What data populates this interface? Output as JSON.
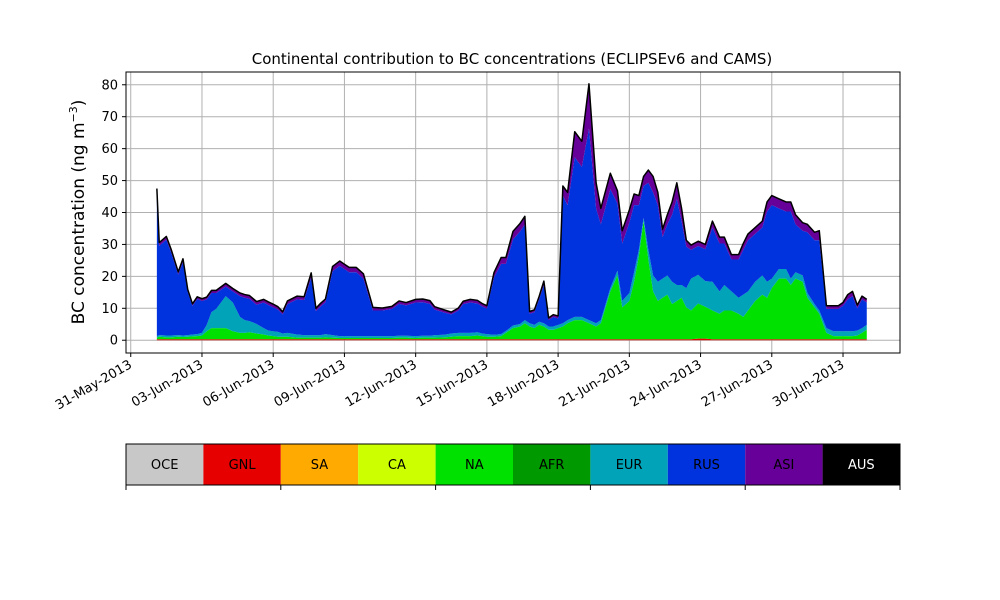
{
  "chart_data": {
    "type": "area",
    "title": "Continental contribution to BC concentrations (ECLIPSEv6 and CAMS)",
    "ylabel": "BC concentration (ng m⁻³)",
    "ylabel_main": "BC concentration (ng m",
    "ylabel_exp": "−3",
    "ylabel_close": ")",
    "xlabel": "",
    "ylim": [
      -4,
      84
    ],
    "xlim": [
      -0.2,
      32.4
    ],
    "yticks": [
      0,
      10,
      20,
      30,
      40,
      50,
      60,
      70,
      80
    ],
    "ytick_labels": [
      "0",
      "10",
      "20",
      "30",
      "40",
      "50",
      "60",
      "70",
      "80"
    ],
    "xticks": [
      0,
      3,
      6,
      9,
      12,
      15,
      18,
      21,
      24,
      27,
      30
    ],
    "xtick_labels": [
      "31-May-2013",
      "03-Jun-2013",
      "06-Jun-2013",
      "09-Jun-2013",
      "12-Jun-2013",
      "15-Jun-2013",
      "18-Jun-2013",
      "21-Jun-2013",
      "24-Jun-2013",
      "27-Jun-2013",
      "30-Jun-2013"
    ],
    "x_units": "days since 31-May-2013",
    "grid": true,
    "stack_order_bottom_to_top": [
      "GNL",
      "NA",
      "EUR",
      "RUS",
      "ASI"
    ],
    "x": [
      1.1,
      1.2,
      1.5,
      1.7,
      2.0,
      2.2,
      2.4,
      2.6,
      2.8,
      3.0,
      3.2,
      3.4,
      3.6,
      4.0,
      4.3,
      4.6,
      4.8,
      5.0,
      5.3,
      5.6,
      5.8,
      6.0,
      6.2,
      6.4,
      6.6,
      7.0,
      7.3,
      7.6,
      7.8,
      8.0,
      8.2,
      8.5,
      8.8,
      9.0,
      9.2,
      9.5,
      9.8,
      10.2,
      10.6,
      11.0,
      11.3,
      11.6,
      12.0,
      12.3,
      12.6,
      12.8,
      13.2,
      13.5,
      13.8,
      14.0,
      14.3,
      14.6,
      14.8,
      15.0,
      15.3,
      15.6,
      15.8,
      16.1,
      16.4,
      16.6,
      16.8,
      17.0,
      17.2,
      17.4,
      17.6,
      17.8,
      18.0,
      18.2,
      18.4,
      18.7,
      19.0,
      19.3,
      19.6,
      19.8,
      20.2,
      20.5,
      20.7,
      21.0,
      21.2,
      21.4,
      21.6,
      21.8,
      22.0,
      22.2,
      22.4,
      22.6,
      22.8,
      23.0,
      23.2,
      23.4,
      23.6,
      23.9,
      24.2,
      24.5,
      24.8,
      25.0,
      25.3,
      25.6,
      25.8,
      26.0,
      26.3,
      26.6,
      26.8,
      27.0,
      27.3,
      27.6,
      27.8,
      28.0,
      28.3,
      28.5,
      28.8,
      29.0,
      29.3,
      29.6,
      29.8,
      30.0,
      30.2,
      30.4,
      30.6,
      30.8,
      31.0
    ],
    "series": [
      {
        "name": "GNL",
        "values": [
          0.3,
          0.3,
          0.3,
          0.3,
          0.3,
          0.3,
          0.3,
          0.3,
          0.3,
          0.3,
          0.3,
          0.3,
          0.3,
          0.3,
          0.3,
          0.3,
          0.3,
          0.3,
          0.3,
          0.3,
          0.3,
          0.3,
          0.3,
          0.3,
          0.3,
          0.3,
          0.3,
          0.3,
          0.3,
          0.3,
          0.3,
          0.3,
          0.3,
          0.3,
          0.3,
          0.3,
          0.3,
          0.3,
          0.3,
          0.3,
          0.3,
          0.3,
          0.3,
          0.3,
          0.3,
          0.3,
          0.3,
          0.3,
          0.3,
          0.3,
          0.3,
          0.3,
          0.3,
          0.3,
          0.3,
          0.3,
          0.3,
          0.3,
          0.3,
          0.3,
          0.3,
          0.3,
          0.3,
          0.3,
          0.3,
          0.3,
          0.3,
          0.3,
          0.3,
          0.3,
          0.3,
          0.3,
          0.3,
          0.3,
          0.3,
          0.3,
          0.3,
          0.3,
          0.3,
          0.3,
          0.3,
          0.3,
          0.3,
          0.3,
          0.3,
          0.3,
          0.3,
          0.3,
          0.3,
          0.3,
          0.3,
          0.5,
          0.5,
          0.3,
          0.3,
          0.3,
          0.3,
          0.3,
          0.3,
          0.3,
          0.3,
          0.3,
          0.3,
          0.3,
          0.3,
          0.3,
          0.3,
          0.3,
          0.3,
          0.3,
          0.3,
          0.3,
          0.3,
          0.3,
          0.3,
          0.3,
          0.3,
          0.3,
          0.3,
          0.3,
          0.3
        ]
      },
      {
        "name": "NA",
        "values": [
          0.5,
          0.8,
          0.6,
          0.6,
          0.8,
          0.7,
          0.8,
          0.9,
          1.0,
          1.2,
          2.5,
          3.5,
          3.5,
          3.5,
          2.5,
          2.0,
          2.0,
          2.2,
          1.8,
          1.5,
          1.2,
          1.0,
          0.8,
          0.8,
          0.8,
          0.5,
          0.5,
          0.5,
          0.5,
          0.5,
          0.6,
          0.5,
          0.4,
          0.4,
          0.4,
          0.4,
          0.4,
          0.4,
          0.4,
          0.4,
          0.5,
          0.5,
          0.4,
          0.5,
          0.5,
          0.5,
          0.6,
          0.8,
          1.0,
          1.0,
          1.0,
          1.2,
          1.0,
          0.8,
          0.8,
          1.0,
          2.0,
          3.5,
          4.0,
          5.0,
          4.0,
          3.5,
          4.5,
          4.0,
          3.0,
          3.0,
          3.5,
          4.0,
          5.0,
          6.0,
          6.0,
          5.0,
          4.0,
          5.0,
          15.0,
          20.0,
          10.0,
          12.0,
          18.0,
          26.0,
          37.0,
          25.0,
          15.0,
          12.0,
          13.0,
          14.0,
          11.0,
          12.0,
          13.0,
          10.0,
          9.0,
          11.0,
          10.0,
          9.0,
          8.0,
          9.0,
          9.0,
          8.0,
          7.0,
          9.0,
          12.0,
          14.0,
          13.0,
          16.0,
          19.0,
          19.0,
          17.0,
          19.0,
          18.0,
          13.0,
          10.0,
          8.0,
          2.0,
          1.0,
          1.0,
          1.0,
          1.0,
          1.0,
          1.2,
          2.0,
          3.0
        ]
      },
      {
        "name": "EUR",
        "values": [
          0.5,
          0.5,
          0.6,
          0.6,
          0.5,
          0.5,
          0.5,
          0.6,
          0.6,
          0.8,
          2.0,
          5.0,
          6.0,
          10.0,
          9.0,
          5.0,
          4.0,
          3.5,
          3.0,
          2.0,
          1.5,
          1.5,
          1.5,
          1.0,
          1.2,
          1.0,
          0.8,
          0.8,
          0.8,
          0.8,
          1.0,
          0.8,
          0.6,
          0.6,
          0.6,
          0.6,
          0.6,
          0.6,
          0.6,
          0.6,
          0.6,
          0.6,
          0.6,
          0.6,
          0.6,
          0.8,
          0.8,
          1.0,
          1.0,
          1.0,
          1.0,
          1.0,
          0.8,
          0.8,
          0.6,
          0.6,
          0.6,
          0.8,
          0.8,
          1.0,
          1.0,
          1.0,
          1.0,
          1.0,
          1.0,
          1.0,
          1.0,
          1.0,
          1.0,
          1.0,
          1.0,
          1.0,
          1.0,
          1.0,
          1.0,
          1.5,
          2.0,
          2.5,
          3.0,
          2.0,
          1.0,
          3.0,
          5.0,
          6.0,
          6.0,
          6.0,
          7.0,
          5.0,
          4.0,
          6.0,
          10.0,
          9.0,
          8.0,
          9.0,
          7.0,
          8.0,
          6.0,
          5.0,
          7.0,
          6.0,
          6.0,
          6.0,
          5.0,
          3.0,
          3.0,
          3.0,
          2.0,
          2.0,
          2.0,
          1.5,
          1.0,
          1.0,
          1.5,
          1.5,
          1.5,
          1.5,
          1.5,
          1.5,
          1.5,
          1.5,
          1.5
        ]
      },
      {
        "name": "RUS",
        "values": [
          45.0,
          28.0,
          30.0,
          26.0,
          19.0,
          23.0,
          13.5,
          9.0,
          11.0,
          10.0,
          8.0,
          6.0,
          5.0,
          3.0,
          3.5,
          6.5,
          7.0,
          7.0,
          6.0,
          8.0,
          8.0,
          7.5,
          7.0,
          6.0,
          9.0,
          11.0,
          11.0,
          18.0,
          7.5,
          9.0,
          10.0,
          20.0,
          22.0,
          21.0,
          20.0,
          20.0,
          18.0,
          8.0,
          8.0,
          8.5,
          10.0,
          9.5,
          10.5,
          10.5,
          10.0,
          8.0,
          7.0,
          6.0,
          7.0,
          9.0,
          9.5,
          9.0,
          8.5,
          8.0,
          18.0,
          22.0,
          21.0,
          27.0,
          29.0,
          30.0,
          3.0,
          4.0,
          7.0,
          12.0,
          2.0,
          3.0,
          2.0,
          40.0,
          36.0,
          50.0,
          47.0,
          60.0,
          36.0,
          30.0,
          31.0,
          21.0,
          18.0,
          22.0,
          21.0,
          14.0,
          10.0,
          21.0,
          26.0,
          24.0,
          13.0,
          16.0,
          21.0,
          27.0,
          20.0,
          13.0,
          9.0,
          9.0,
          10.0,
          17.0,
          15.0,
          13.0,
          10.0,
          12.0,
          14.0,
          16.0,
          15.0,
          15.0,
          22.0,
          23.0,
          19.0,
          18.0,
          21.0,
          15.0,
          14.0,
          19.0,
          20.0,
          22.0,
          6.0,
          7.0,
          7.0,
          8.0,
          10.0,
          11.0,
          7.0,
          9.0,
          7.0
        ]
      },
      {
        "name": "ASI",
        "values": [
          1.2,
          1.0,
          1.0,
          1.0,
          0.8,
          1.0,
          0.8,
          0.6,
          0.7,
          0.7,
          0.7,
          0.8,
          0.8,
          1.0,
          0.9,
          1.0,
          1.0,
          1.0,
          1.0,
          1.0,
          1.0,
          1.0,
          0.9,
          0.8,
          1.0,
          1.0,
          1.0,
          1.5,
          0.9,
          1.0,
          1.0,
          1.5,
          1.5,
          1.5,
          1.5,
          1.5,
          1.5,
          1.0,
          0.8,
          0.8,
          0.9,
          0.9,
          1.0,
          1.0,
          1.0,
          0.9,
          0.8,
          0.7,
          0.8,
          0.9,
          1.0,
          1.0,
          0.9,
          0.9,
          1.5,
          2.0,
          2.0,
          2.5,
          2.5,
          2.5,
          0.7,
          0.7,
          0.9,
          1.2,
          0.7,
          0.7,
          0.8,
          3.0,
          4.0,
          8.0,
          8.0,
          14.0,
          8.0,
          5.0,
          5.0,
          4.0,
          4.0,
          4.0,
          3.5,
          3.0,
          3.0,
          4.0,
          5.0,
          4.0,
          2.5,
          3.0,
          4.0,
          5.0,
          4.0,
          2.0,
          1.5,
          1.5,
          1.5,
          2.0,
          2.0,
          2.0,
          1.5,
          1.5,
          2.0,
          2.0,
          2.0,
          2.0,
          3.0,
          3.0,
          3.0,
          3.0,
          3.0,
          3.0,
          2.5,
          2.5,
          2.5,
          3.0,
          1.0,
          1.0,
          1.0,
          1.0,
          1.5,
          1.5,
          1.0,
          1.0,
          1.0
        ]
      }
    ],
    "legend": {
      "placement": "bottom",
      "items": [
        {
          "name": "OCE",
          "color": "#c8c8c8",
          "text_color": "#000000"
        },
        {
          "name": "GNL",
          "color": "#e60000",
          "text_color": "#000000"
        },
        {
          "name": "SA",
          "color": "#ffaa00",
          "text_color": "#000000"
        },
        {
          "name": "CA",
          "color": "#ccff00",
          "text_color": "#000000"
        },
        {
          "name": "NA",
          "color": "#00e100",
          "text_color": "#000000"
        },
        {
          "name": "AFR",
          "color": "#009900",
          "text_color": "#000000"
        },
        {
          "name": "EUR",
          "color": "#00a3b8",
          "text_color": "#000000"
        },
        {
          "name": "RUS",
          "color": "#0033dd",
          "text_color": "#000000"
        },
        {
          "name": "ASI",
          "color": "#660099",
          "text_color": "#000000"
        },
        {
          "name": "AUS",
          "color": "#000000",
          "text_color": "#ffffff"
        }
      ]
    },
    "total_line_color": "#000000",
    "grid_color": "#b0b0b0"
  }
}
